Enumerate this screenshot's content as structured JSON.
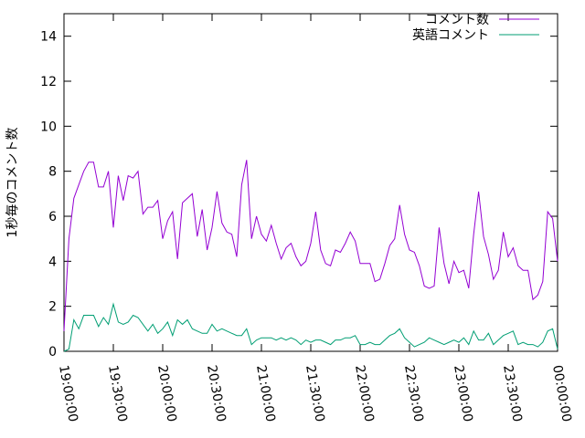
{
  "chart_data": {
    "type": "line",
    "ylabel": "1秒毎のコメント数",
    "ylim": [
      0,
      15
    ],
    "y_ticks": [
      0,
      2,
      4,
      6,
      8,
      10,
      12,
      14
    ],
    "x_ticks": [
      "19:00:00",
      "19:30:00",
      "20:00:00",
      "20:30:00",
      "21:00:00",
      "21:30:00",
      "22:00:00",
      "22:30:00",
      "23:00:00",
      "23:30:00",
      "00:00:00"
    ],
    "x_range": [
      "19:00:00",
      "00:00:00"
    ],
    "x_step_minutes": 3,
    "grid": false,
    "legend_position": "top-right",
    "series": [
      {
        "name": "コメント数",
        "color": "#9400d3",
        "values": [
          0.9,
          5.0,
          6.8,
          7.4,
          8.0,
          8.4,
          8.4,
          7.3,
          7.3,
          8.0,
          5.5,
          7.8,
          6.7,
          7.8,
          7.7,
          8.0,
          6.1,
          6.4,
          6.4,
          6.7,
          5.0,
          5.8,
          6.2,
          4.1,
          6.6,
          6.8,
          7.0,
          5.1,
          6.3,
          4.5,
          5.5,
          7.1,
          5.7,
          5.3,
          5.2,
          4.2,
          7.4,
          8.5,
          5.0,
          6.0,
          5.2,
          4.9,
          5.6,
          4.8,
          4.1,
          4.6,
          4.8,
          4.2,
          3.8,
          4.0,
          4.8,
          6.2,
          4.5,
          3.9,
          3.8,
          4.5,
          4.4,
          4.8,
          5.3,
          4.9,
          3.9,
          3.9,
          3.9,
          3.1,
          3.2,
          3.9,
          4.7,
          5.0,
          6.5,
          5.2,
          4.5,
          4.4,
          3.8,
          2.9,
          2.8,
          2.9,
          5.5,
          3.9,
          3.0,
          4.0,
          3.5,
          3.6,
          2.8,
          5.2,
          7.1,
          5.1,
          4.3,
          3.2,
          3.6,
          5.3,
          4.2,
          4.6,
          3.8,
          3.6,
          3.6,
          2.3,
          2.5,
          3.1,
          6.2,
          5.9,
          4.0
        ]
      },
      {
        "name": "英語コメント",
        "color": "#009e73",
        "values": [
          0.0,
          0.1,
          1.4,
          1.0,
          1.6,
          1.6,
          1.6,
          1.1,
          1.5,
          1.2,
          2.1,
          1.3,
          1.2,
          1.3,
          1.6,
          1.5,
          1.2,
          0.9,
          1.2,
          0.8,
          1.0,
          1.3,
          0.7,
          1.4,
          1.2,
          1.4,
          1.0,
          0.9,
          0.8,
          0.8,
          1.2,
          0.9,
          1.0,
          0.9,
          0.8,
          0.7,
          0.7,
          1.0,
          0.3,
          0.5,
          0.6,
          0.6,
          0.6,
          0.5,
          0.6,
          0.5,
          0.6,
          0.5,
          0.3,
          0.5,
          0.4,
          0.5,
          0.5,
          0.4,
          0.3,
          0.5,
          0.5,
          0.6,
          0.6,
          0.7,
          0.3,
          0.3,
          0.4,
          0.3,
          0.3,
          0.5,
          0.7,
          0.8,
          1.0,
          0.6,
          0.4,
          0.2,
          0.3,
          0.4,
          0.6,
          0.5,
          0.4,
          0.3,
          0.4,
          0.5,
          0.4,
          0.6,
          0.3,
          0.9,
          0.5,
          0.5,
          0.8,
          0.3,
          0.5,
          0.7,
          0.8,
          0.9,
          0.3,
          0.4,
          0.3,
          0.3,
          0.2,
          0.4,
          0.9,
          1.0,
          0.1
        ]
      }
    ]
  }
}
